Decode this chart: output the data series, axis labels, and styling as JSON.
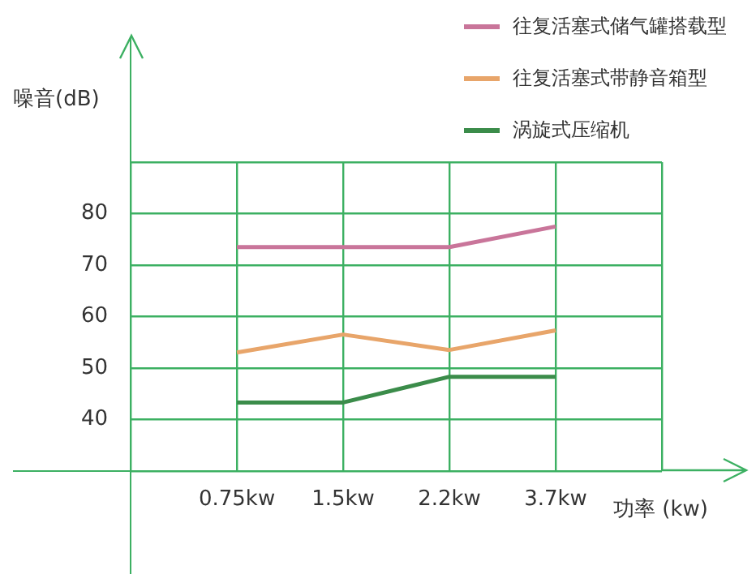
{
  "chart_data": {
    "type": "line",
    "xlabel": "功率 (kw)",
    "ylabel": "噪音(dB)",
    "categories": [
      null,
      "0.75kw",
      "1.5kw",
      "2.2kw",
      "3.7kw",
      null
    ],
    "series": [
      {
        "name": "往复活塞式储气罐搭载型",
        "color": "#c9759a",
        "values": [
          null,
          73.5,
          73.5,
          73.5,
          77.5,
          null
        ]
      },
      {
        "name": "往复活塞式带静音箱型",
        "color": "#e8a56a",
        "values": [
          null,
          53,
          56.5,
          53.5,
          57.3,
          null
        ]
      },
      {
        "name": "涡旋式压缩机",
        "color": "#3b8c4a",
        "values": [
          null,
          43.3,
          43.3,
          48.3,
          48.3,
          null
        ]
      }
    ],
    "ylim": [
      30,
      90
    ],
    "yticks": [
      {
        "value": 30,
        "label": null
      },
      40,
      50,
      60,
      70,
      80,
      {
        "value": 90,
        "label": null
      }
    ],
    "grid": true,
    "legend": "top right"
  }
}
